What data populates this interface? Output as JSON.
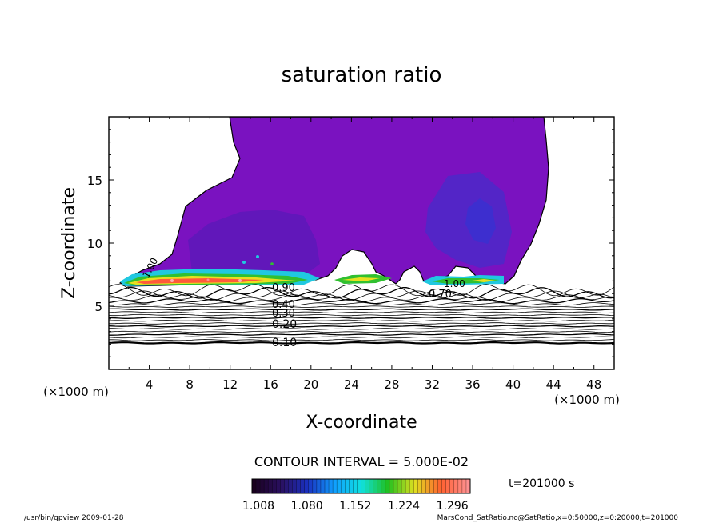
{
  "chart_data": {
    "type": "heatmap",
    "title": "saturation ratio",
    "xlabel": "X-coordinate",
    "ylabel": "Z-coordinate",
    "x_unit": "(×1000 m)",
    "z_unit": "(×1000 m)",
    "xlim": [
      0,
      50
    ],
    "ylim": [
      0,
      20
    ],
    "x_ticks": [
      "4",
      "8",
      "12",
      "16",
      "20",
      "24",
      "28",
      "32",
      "36",
      "40",
      "44",
      "48"
    ],
    "y_ticks": [
      "5",
      "10",
      "15"
    ],
    "contour_interval_text": "CONTOUR INTERVAL = 5.000E-02",
    "contour_labels": [
      "1.00",
      "0.90",
      "0.40",
      "0.30",
      "0.20",
      "0.10",
      "0.70",
      "1.00"
    ],
    "colorbar": {
      "min": 1.008,
      "max": 1.332,
      "tick_labels": [
        "1.008",
        "1.080",
        "1.152",
        "1.224",
        "1.296"
      ],
      "colors": [
        "#1a001f",
        "#2a1060",
        "#1a30c0",
        "#10a0ff",
        "#10e0e0",
        "#20c020",
        "#e0e020",
        "#ff6030",
        "#ff9090"
      ]
    },
    "time_label": "t=201000 s",
    "footer_left": "/usr/bin/gpview  2009-01-28",
    "footer_right": "MarsCond_SatRatio.nc@SatRatio,x=0:50000,z=0:20000,t=201000"
  }
}
